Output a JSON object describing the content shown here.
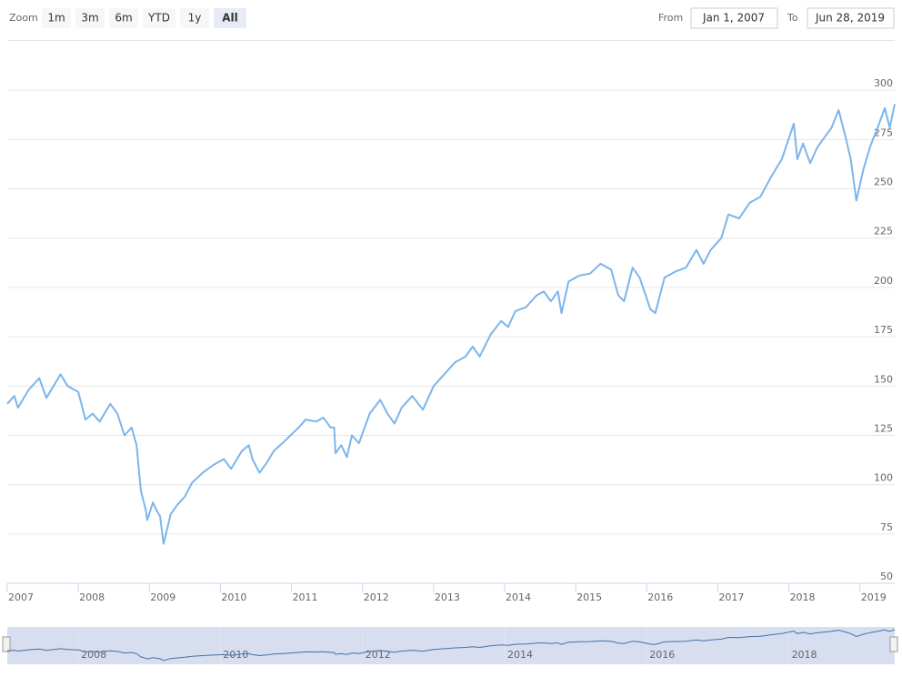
{
  "range_selector": {
    "zoom_label": "Zoom",
    "buttons": [
      "1m",
      "3m",
      "6m",
      "YTD",
      "1y",
      "All"
    ],
    "selected": 5,
    "from_label": "From",
    "from": "Jan 1, 2007",
    "to_label": "To",
    "to": "Jun 28, 2019"
  },
  "chart_data": {
    "type": "line",
    "color": "#7cb5ec",
    "grid": true,
    "xlim": [
      2007,
      2019.49
    ],
    "xticks": [
      2007,
      2008,
      2009,
      2010,
      2011,
      2012,
      2013,
      2014,
      2015,
      2016,
      2017,
      2018,
      2019
    ],
    "ylim": [
      50,
      325
    ],
    "yticks": [
      50,
      75,
      100,
      125,
      150,
      175,
      200,
      225,
      250,
      275,
      300
    ],
    "x": [
      2007.0,
      2007.1,
      2007.15,
      2007.3,
      2007.45,
      2007.55,
      2007.75,
      2007.85,
      2008.0,
      2008.1,
      2008.2,
      2008.3,
      2008.4,
      2008.45,
      2008.55,
      2008.65,
      2008.75,
      2008.82,
      2008.88,
      2008.95,
      2008.97,
      2009.05,
      2009.1,
      2009.15,
      2009.2,
      2009.3,
      2009.4,
      2009.5,
      2009.6,
      2009.75,
      2009.9,
      2010.05,
      2010.15,
      2010.3,
      2010.4,
      2010.45,
      2010.55,
      2010.65,
      2010.75,
      2010.9,
      2011.1,
      2011.2,
      2011.35,
      2011.45,
      2011.55,
      2011.6,
      2011.62,
      2011.7,
      2011.78,
      2011.85,
      2011.95,
      2012.1,
      2012.25,
      2012.35,
      2012.45,
      2012.55,
      2012.7,
      2012.85,
      2013.0,
      2013.15,
      2013.3,
      2013.45,
      2013.55,
      2013.65,
      2013.8,
      2013.95,
      2014.05,
      2014.15,
      2014.3,
      2014.45,
      2014.55,
      2014.65,
      2014.75,
      2014.8,
      2014.9,
      2015.05,
      2015.2,
      2015.35,
      2015.5,
      2015.6,
      2015.68,
      2015.8,
      2015.9,
      2016.05,
      2016.12,
      2016.25,
      2016.4,
      2016.55,
      2016.7,
      2016.8,
      2016.9,
      2017.05,
      2017.15,
      2017.3,
      2017.45,
      2017.6,
      2017.75,
      2017.9,
      2018.07,
      2018.12,
      2018.2,
      2018.3,
      2018.4,
      2018.5,
      2018.6,
      2018.7,
      2018.8,
      2018.87,
      2018.95,
      2019.05,
      2019.15,
      2019.25,
      2019.35,
      2019.42,
      2019.49
    ],
    "values": [
      141,
      145,
      139,
      148,
      154,
      144,
      156,
      150,
      147,
      133,
      136,
      132,
      138,
      141,
      136,
      125,
      129,
      120,
      97,
      87,
      82,
      91,
      87,
      84,
      70,
      85,
      90,
      94,
      101,
      106,
      110,
      113,
      108,
      117,
      120,
      113,
      106,
      111,
      117,
      122,
      129,
      133,
      132,
      134,
      129,
      129,
      116,
      120,
      114,
      125,
      121,
      136,
      143,
      136,
      131,
      139,
      145,
      138,
      150,
      156,
      162,
      165,
      170,
      165,
      176,
      183,
      180,
      188,
      190,
      196,
      198,
      193,
      198,
      187,
      203,
      206,
      207,
      212,
      209,
      196,
      193,
      210,
      205,
      189,
      187,
      205,
      208,
      210,
      219,
      212,
      219,
      225,
      237,
      235,
      243,
      246,
      256,
      265,
      283,
      265,
      273,
      263,
      271,
      276,
      281,
      290,
      276,
      265,
      244,
      260,
      272,
      281,
      291,
      281,
      293
    ],
    "navigator": {
      "xticks": [
        2008,
        2010,
        2012,
        2014,
        2016,
        2018
      ]
    }
  }
}
